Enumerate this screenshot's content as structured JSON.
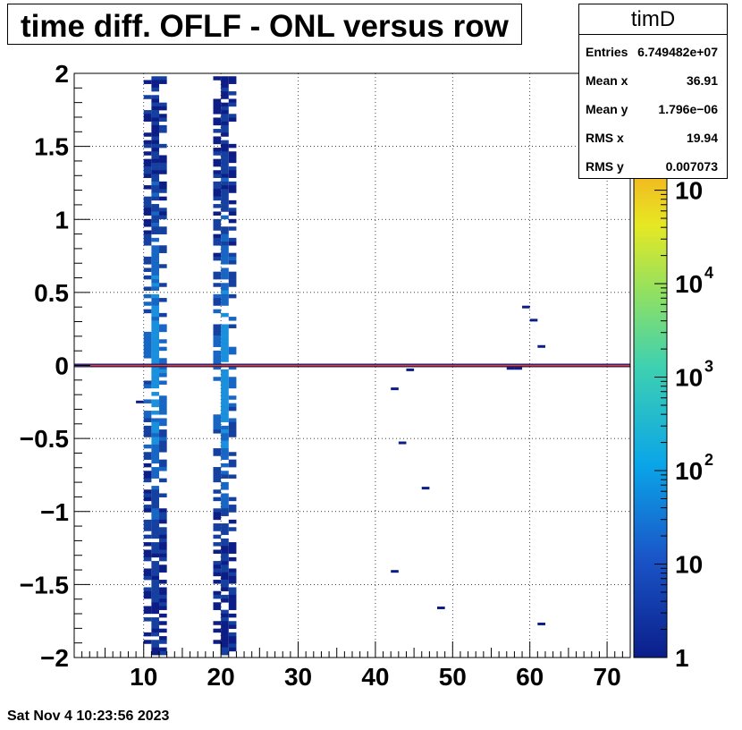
{
  "chart_data": {
    "type": "heatmap",
    "title": "time diff. OFLF - ONL versus row",
    "xlim": [
      1,
      73
    ],
    "ylim": [
      -2,
      2
    ],
    "x_ticks": [
      10,
      20,
      30,
      40,
      50,
      60,
      70
    ],
    "y_ticks": [
      {
        "value": -2,
        "label": "−2"
      },
      {
        "value": -1.5,
        "label": "−1.5"
      },
      {
        "value": -1,
        "label": "−1"
      },
      {
        "value": -0.5,
        "label": "−0.5"
      },
      {
        "value": 0,
        "label": "0"
      },
      {
        "value": 0.5,
        "label": "0.5"
      },
      {
        "value": 1,
        "label": "1"
      },
      {
        "value": 1.5,
        "label": "1.5"
      },
      {
        "value": 2,
        "label": "2"
      }
    ],
    "grid": true,
    "colorbar": {
      "scale": "log",
      "min": 1,
      "max": 100000,
      "labels": [
        {
          "value": 1,
          "base": "1",
          "exp": ""
        },
        {
          "value": 10,
          "base": "10",
          "exp": ""
        },
        {
          "value": 100,
          "base": "10",
          "exp": "2"
        },
        {
          "value": 1000,
          "base": "10",
          "exp": "3"
        },
        {
          "value": 10000,
          "base": "10",
          "exp": "4"
        },
        {
          "value": 100000,
          "base": "10",
          "exp": ""
        }
      ]
    },
    "dense_bands": [
      {
        "x_from": 10,
        "x_to": 13,
        "y_from": -1.98,
        "y_to": 1.98
      },
      {
        "x_from": 19,
        "x_to": 22,
        "y_from": -1.98,
        "y_to": 1.98
      }
    ],
    "row_line": {
      "y": 0,
      "x_from": 1,
      "x_to": 73
    },
    "points": [
      {
        "x": 9,
        "y": -0.25
      },
      {
        "x": 42,
        "y": -0.16
      },
      {
        "x": 44,
        "y": -0.03
      },
      {
        "x": 43,
        "y": -0.53
      },
      {
        "x": 46,
        "y": -0.84
      },
      {
        "x": 42,
        "y": -1.41
      },
      {
        "x": 48,
        "y": -1.66
      },
      {
        "x": 57,
        "y": -0.02
      },
      {
        "x": 58,
        "y": -0.02
      },
      {
        "x": 59,
        "y": 0.4
      },
      {
        "x": 60,
        "y": 0.31
      },
      {
        "x": 61,
        "y": 0.13
      },
      {
        "x": 61,
        "y": -1.77
      }
    ]
  },
  "stats": {
    "title": "timD",
    "rows": [
      {
        "key": "Entries",
        "value": "6.749482e+07"
      },
      {
        "key": "Mean x",
        "value": "36.91"
      },
      {
        "key": "Mean y",
        "value": "1.796e−06"
      },
      {
        "key": "RMS x",
        "value": "19.94"
      },
      {
        "key": "RMS y",
        "value": "0.007073"
      }
    ]
  },
  "footer": {
    "date": "Sat Nov  4 10:23:56 2023"
  }
}
